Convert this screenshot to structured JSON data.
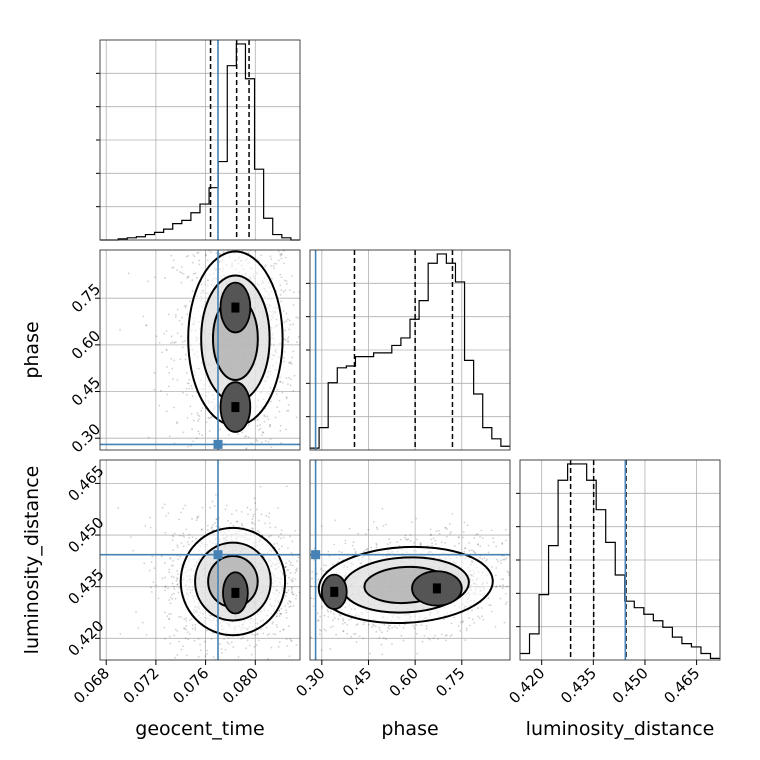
{
  "chart_data": {
    "type": "corner",
    "parameters": [
      "geocent_time",
      "phase",
      "luminosity_distance"
    ],
    "axis_labels": {
      "geocent_time": "geocent_time",
      "phase": "phase",
      "luminosity_distance": "luminosity_distance"
    },
    "ranges": {
      "geocent_time": [
        0.0675,
        0.0836
      ],
      "phase": [
        0.262,
        0.905
      ],
      "luminosity_distance": [
        0.4137,
        0.4718
      ]
    },
    "ticks": {
      "geocent_time": [
        "0.068",
        "0.072",
        "0.076",
        "0.080"
      ],
      "phase": [
        "0.30",
        "0.45",
        "0.60",
        "0.75"
      ],
      "luminosity_distance": [
        "0.420",
        "0.435",
        "0.450",
        "0.465"
      ]
    },
    "truths": {
      "geocent_time": 0.077,
      "phase": 0.28,
      "luminosity_distance": 0.4443
    },
    "truth_color": "#4682b4",
    "quantiles": {
      "geocent_time": [
        0.0764,
        0.0785,
        0.0795
      ],
      "phase": [
        0.405,
        0.6,
        0.72
      ],
      "luminosity_distance": [
        0.4284,
        0.4351,
        0.4445
      ]
    },
    "histograms": {
      "geocent_time": [
        0,
        0,
        1,
        2,
        3,
        5,
        7,
        10,
        15,
        18,
        25,
        33,
        48,
        72,
        160,
        180,
        148,
        65,
        20,
        5,
        2,
        0
      ],
      "phase": [
        1,
        12,
        36,
        44,
        45,
        50,
        50,
        52,
        52,
        56,
        60,
        70,
        80,
        100,
        105,
        100,
        90,
        48,
        30,
        12,
        6,
        2
      ],
      "luminosity_distance": [
        4,
        16,
        40,
        70,
        110,
        120,
        120,
        110,
        92,
        72,
        52,
        36,
        32,
        28,
        24,
        20,
        14,
        10,
        8,
        4,
        1
      ]
    },
    "grid": true,
    "sample_style": "grey points with density contours and 2D histogram shading"
  }
}
